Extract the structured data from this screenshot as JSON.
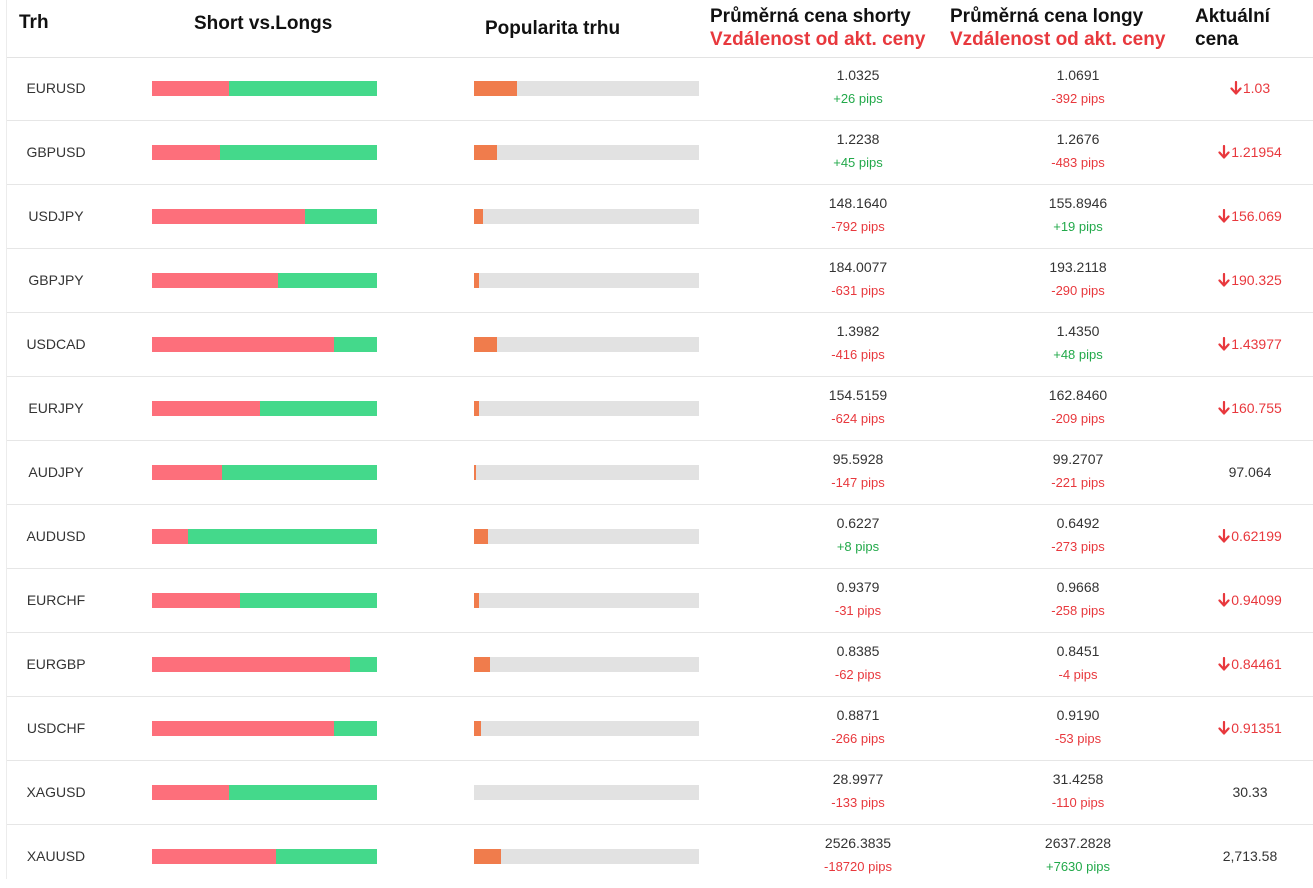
{
  "header": {
    "market": "Trh",
    "short_vs_longs": "Short vs.Longs",
    "popularity": "Popularita trhu",
    "avg_short_price": "Průměrná cena shorty",
    "avg_short_distance": "Vzdálenost od akt. ceny",
    "avg_long_price": "Průměrná cena longy",
    "avg_long_distance": "Vzdálenost od akt. ceny",
    "current_price": "Aktuální cena"
  },
  "colors": {
    "short": "#fd6f7b",
    "long": "#44d98b",
    "popularity": "#f07c4c",
    "popularity_track": "#e2e2e2",
    "positive": "#22a94a",
    "negative": "#e8383d"
  },
  "rows": [
    {
      "market": "EURUSD",
      "short_pct": 34,
      "popularity_pct": 19,
      "short_price": "1.0325",
      "short_pips": "+26 pips",
      "short_dir": "pos",
      "long_price": "1.0691",
      "long_pips": "-392 pips",
      "long_dir": "neg",
      "current": "1.03",
      "current_down": true,
      "icon": "arrow-down-icon"
    },
    {
      "market": "GBPUSD",
      "short_pct": 30,
      "popularity_pct": 10,
      "short_price": "1.2238",
      "short_pips": "+45 pips",
      "short_dir": "pos",
      "long_price": "1.2676",
      "long_pips": "-483 pips",
      "long_dir": "neg",
      "current": "1.21954",
      "current_down": true,
      "icon": "arrow-down-icon"
    },
    {
      "market": "USDJPY",
      "short_pct": 68,
      "popularity_pct": 4,
      "short_price": "148.1640",
      "short_pips": "-792 pips",
      "short_dir": "neg",
      "long_price": "155.8946",
      "long_pips": "+19 pips",
      "long_dir": "pos",
      "current": "156.069",
      "current_down": true,
      "icon": "arrow-down-icon"
    },
    {
      "market": "GBPJPY",
      "short_pct": 56,
      "popularity_pct": 2,
      "short_price": "184.0077",
      "short_pips": "-631 pips",
      "short_dir": "neg",
      "long_price": "193.2118",
      "long_pips": "-290 pips",
      "long_dir": "neg",
      "current": "190.325",
      "current_down": true,
      "icon": "arrow-down-icon"
    },
    {
      "market": "USDCAD",
      "short_pct": 81,
      "popularity_pct": 10,
      "short_price": "1.3982",
      "short_pips": "-416 pips",
      "short_dir": "neg",
      "long_price": "1.4350",
      "long_pips": "+48 pips",
      "long_dir": "pos",
      "current": "1.43977",
      "current_down": true,
      "icon": "arrow-down-icon"
    },
    {
      "market": "EURJPY",
      "short_pct": 48,
      "popularity_pct": 2,
      "short_price": "154.5159",
      "short_pips": "-624 pips",
      "short_dir": "neg",
      "long_price": "162.8460",
      "long_pips": "-209 pips",
      "long_dir": "neg",
      "current": "160.755",
      "current_down": true,
      "icon": "arrow-down-icon"
    },
    {
      "market": "AUDJPY",
      "short_pct": 31,
      "popularity_pct": 1,
      "short_price": "95.5928",
      "short_pips": "-147 pips",
      "short_dir": "neg",
      "long_price": "99.2707",
      "long_pips": "-221 pips",
      "long_dir": "neg",
      "current": "97.064",
      "current_down": false,
      "icon": ""
    },
    {
      "market": "AUDUSD",
      "short_pct": 16,
      "popularity_pct": 6,
      "short_price": "0.6227",
      "short_pips": "+8 pips",
      "short_dir": "pos",
      "long_price": "0.6492",
      "long_pips": "-273 pips",
      "long_dir": "neg",
      "current": "0.62199",
      "current_down": true,
      "icon": "arrow-down-icon"
    },
    {
      "market": "EURCHF",
      "short_pct": 39,
      "popularity_pct": 2,
      "short_price": "0.9379",
      "short_pips": "-31 pips",
      "short_dir": "neg",
      "long_price": "0.9668",
      "long_pips": "-258 pips",
      "long_dir": "neg",
      "current": "0.94099",
      "current_down": true,
      "icon": "arrow-down-icon"
    },
    {
      "market": "EURGBP",
      "short_pct": 88,
      "popularity_pct": 7,
      "short_price": "0.8385",
      "short_pips": "-62 pips",
      "short_dir": "neg",
      "long_price": "0.8451",
      "long_pips": "-4 pips",
      "long_dir": "neg",
      "current": "0.84461",
      "current_down": true,
      "icon": "arrow-down-icon"
    },
    {
      "market": "USDCHF",
      "short_pct": 81,
      "popularity_pct": 3,
      "short_price": "0.8871",
      "short_pips": "-266 pips",
      "short_dir": "neg",
      "long_price": "0.9190",
      "long_pips": "-53 pips",
      "long_dir": "neg",
      "current": "0.91351",
      "current_down": true,
      "icon": "arrow-down-icon"
    },
    {
      "market": "XAGUSD",
      "short_pct": 34,
      "popularity_pct": 0,
      "short_price": "28.9977",
      "short_pips": "-133 pips",
      "short_dir": "neg",
      "long_price": "31.4258",
      "long_pips": "-110 pips",
      "long_dir": "neg",
      "current": "30.33",
      "current_down": false,
      "icon": ""
    },
    {
      "market": "XAUUSD",
      "short_pct": 55,
      "popularity_pct": 12,
      "short_price": "2526.3835",
      "short_pips": "-18720 pips",
      "short_dir": "neg",
      "long_price": "2637.2828",
      "long_pips": "+7630 pips",
      "long_dir": "pos",
      "current": "2,713.58",
      "current_down": false,
      "icon": ""
    }
  ]
}
